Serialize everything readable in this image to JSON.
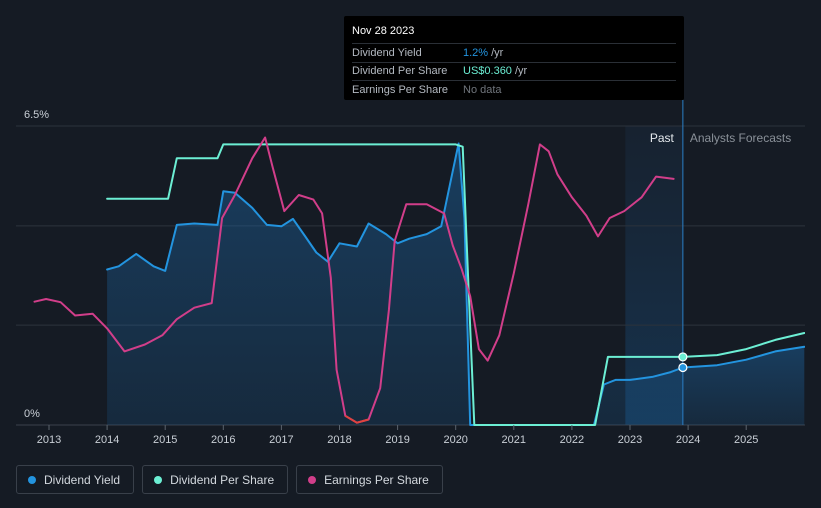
{
  "tooltip": {
    "date": "Nov 28 2023",
    "rows": [
      {
        "label": "Dividend Yield",
        "value": "1.2%",
        "unit": "/yr",
        "color": "#2394df"
      },
      {
        "label": "Dividend Per Share",
        "value": "US$0.360",
        "unit": "/yr",
        "color": "#6cefd4"
      },
      {
        "label": "Earnings Per Share",
        "value": "No data",
        "unit": "",
        "color": "#70757c"
      }
    ]
  },
  "legend": [
    {
      "label": "Dividend Yield",
      "color": "#2394df"
    },
    {
      "label": "Dividend Per Share",
      "color": "#6cefd4"
    },
    {
      "label": "Earnings Per Share",
      "color": "#d13e8a"
    }
  ],
  "chart_data": {
    "type": "line",
    "y_top_label": "6.5%",
    "y_bottom_label": "0%",
    "ylim": [
      0,
      6.5
    ],
    "xlim": [
      2012.75,
      2026.0
    ],
    "x_ticks": [
      "2013",
      "2014",
      "2015",
      "2016",
      "2017",
      "2018",
      "2019",
      "2020",
      "2021",
      "2022",
      "2023",
      "2024",
      "2025"
    ],
    "past_label": "Past",
    "forecast_label": "Analysts Forecasts",
    "forecast_start": 2022.92,
    "current_x": 2023.91,
    "grid": true,
    "series": [
      {
        "name": "Dividend Yield",
        "color": "#2394df",
        "fill": true,
        "points": [
          [
            2014.0,
            3.38
          ],
          [
            2014.2,
            3.45
          ],
          [
            2014.5,
            3.72
          ],
          [
            2014.8,
            3.45
          ],
          [
            2015.0,
            3.35
          ],
          [
            2015.2,
            4.35
          ],
          [
            2015.5,
            4.38
          ],
          [
            2015.9,
            4.35
          ],
          [
            2016.0,
            5.08
          ],
          [
            2016.2,
            5.05
          ],
          [
            2016.5,
            4.72
          ],
          [
            2016.75,
            4.35
          ],
          [
            2017.0,
            4.32
          ],
          [
            2017.2,
            4.48
          ],
          [
            2017.4,
            4.12
          ],
          [
            2017.6,
            3.75
          ],
          [
            2017.8,
            3.55
          ],
          [
            2018.0,
            3.95
          ],
          [
            2018.3,
            3.88
          ],
          [
            2018.5,
            4.38
          ],
          [
            2018.8,
            4.15
          ],
          [
            2019.0,
            3.95
          ],
          [
            2019.2,
            4.05
          ],
          [
            2019.5,
            4.15
          ],
          [
            2019.75,
            4.32
          ],
          [
            2019.92,
            5.35
          ],
          [
            2020.05,
            6.12
          ],
          [
            2020.15,
            4.5
          ],
          [
            2020.25,
            0.0
          ],
          [
            2021.0,
            0.0
          ],
          [
            2022.0,
            0.0
          ],
          [
            2022.38,
            0.0
          ],
          [
            2022.55,
            0.88
          ],
          [
            2022.75,
            0.98
          ],
          [
            2023.0,
            0.98
          ],
          [
            2023.4,
            1.05
          ],
          [
            2023.7,
            1.15
          ],
          [
            2023.91,
            1.25
          ]
        ]
      },
      {
        "name": "Dividend Yield Forecast",
        "color": "#2394df",
        "fill": true,
        "points": [
          [
            2023.91,
            1.25
          ],
          [
            2024.5,
            1.3
          ],
          [
            2025.0,
            1.42
          ],
          [
            2025.5,
            1.6
          ],
          [
            2026.0,
            1.7
          ]
        ]
      },
      {
        "name": "Dividend Per Share",
        "color": "#6cefd4",
        "fill": false,
        "points": [
          [
            2014.0,
            4.92
          ],
          [
            2015.05,
            4.92
          ],
          [
            2015.2,
            5.8
          ],
          [
            2015.9,
            5.8
          ],
          [
            2016.0,
            6.1
          ],
          [
            2016.5,
            6.1
          ],
          [
            2017.0,
            6.1
          ],
          [
            2018.0,
            6.1
          ],
          [
            2019.0,
            6.1
          ],
          [
            2020.0,
            6.1
          ],
          [
            2020.12,
            6.05
          ],
          [
            2020.22,
            3.0
          ],
          [
            2020.32,
            0.0
          ],
          [
            2021.0,
            0.0
          ],
          [
            2022.0,
            0.0
          ],
          [
            2022.4,
            0.0
          ],
          [
            2022.62,
            1.48
          ],
          [
            2023.0,
            1.48
          ],
          [
            2023.5,
            1.48
          ],
          [
            2023.91,
            1.48
          ]
        ]
      },
      {
        "name": "Dividend Per Share Forecast",
        "color": "#6cefd4",
        "fill": false,
        "points": [
          [
            2023.91,
            1.48
          ],
          [
            2024.5,
            1.52
          ],
          [
            2025.0,
            1.65
          ],
          [
            2025.5,
            1.85
          ],
          [
            2026.0,
            2.0
          ]
        ]
      },
      {
        "name": "Earnings Per Share",
        "color": "#d13e8a",
        "fill": false,
        "points": [
          [
            2012.75,
            2.68
          ],
          [
            2012.95,
            2.74
          ],
          [
            2013.2,
            2.67
          ],
          [
            2013.45,
            2.38
          ],
          [
            2013.75,
            2.42
          ],
          [
            2014.0,
            2.1
          ],
          [
            2014.3,
            1.6
          ],
          [
            2014.65,
            1.75
          ],
          [
            2014.95,
            1.95
          ],
          [
            2015.2,
            2.3
          ],
          [
            2015.5,
            2.55
          ],
          [
            2015.8,
            2.65
          ],
          [
            2015.98,
            4.5
          ],
          [
            2016.2,
            5.0
          ],
          [
            2016.5,
            5.8
          ],
          [
            2016.72,
            6.25
          ],
          [
            2016.85,
            5.6
          ],
          [
            2017.05,
            4.65
          ],
          [
            2017.3,
            5.0
          ],
          [
            2017.55,
            4.9
          ],
          [
            2017.7,
            4.6
          ],
          [
            2017.85,
            3.2
          ],
          [
            2017.95,
            1.2
          ],
          [
            2018.1,
            0.2
          ],
          [
            2018.3,
            0.05
          ],
          [
            2018.5,
            0.12
          ],
          [
            2018.7,
            0.8
          ],
          [
            2018.85,
            2.5
          ],
          [
            2018.95,
            4.0
          ],
          [
            2019.15,
            4.8
          ],
          [
            2019.5,
            4.8
          ],
          [
            2019.8,
            4.6
          ],
          [
            2019.95,
            3.9
          ],
          [
            2020.1,
            3.4
          ],
          [
            2020.25,
            2.8
          ],
          [
            2020.4,
            1.65
          ],
          [
            2020.55,
            1.4
          ],
          [
            2020.75,
            1.95
          ],
          [
            2021.0,
            3.3
          ],
          [
            2021.25,
            4.8
          ],
          [
            2021.45,
            6.1
          ],
          [
            2021.6,
            5.95
          ],
          [
            2021.75,
            5.45
          ],
          [
            2022.0,
            4.95
          ],
          [
            2022.25,
            4.55
          ],
          [
            2022.45,
            4.1
          ],
          [
            2022.65,
            4.5
          ],
          [
            2022.9,
            4.65
          ],
          [
            2023.2,
            4.95
          ],
          [
            2023.45,
            5.4
          ],
          [
            2023.75,
            5.35
          ]
        ]
      }
    ]
  }
}
